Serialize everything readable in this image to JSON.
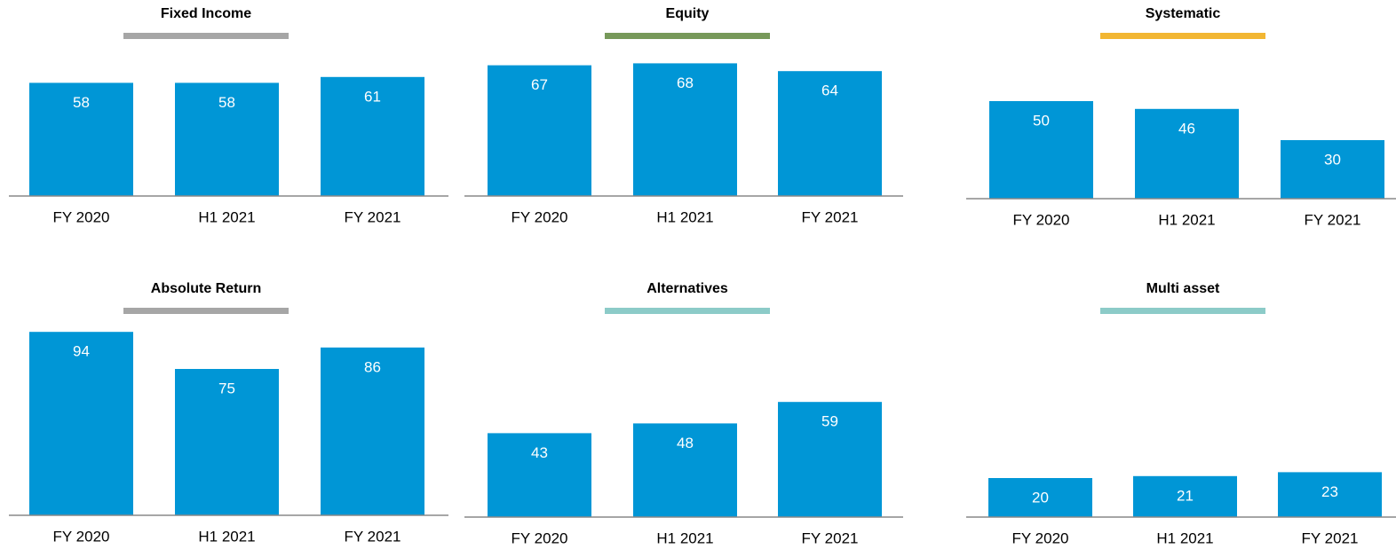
{
  "chart_data": [
    {
      "type": "bar",
      "title": "Fixed Income",
      "accent": "#a6a6a6",
      "color": "#0096d6",
      "categories": [
        "FY 2020",
        "H1 2021",
        "FY 2021"
      ],
      "values": [
        58,
        58,
        61
      ]
    },
    {
      "type": "bar",
      "title": "Equity",
      "accent": "#77995a",
      "color": "#0096d6",
      "categories": [
        "FY 2020",
        "H1 2021",
        "FY 2021"
      ],
      "values": [
        67,
        68,
        64
      ]
    },
    {
      "type": "bar",
      "title": "Systematic",
      "accent": "#f2b632",
      "color": "#0096d6",
      "categories": [
        "FY 2020",
        "H1 2021",
        "FY 2021"
      ],
      "values": [
        50,
        46,
        30
      ]
    },
    {
      "type": "bar",
      "title": "Absolute Return",
      "accent": "#a6a6a6",
      "color": "#0096d6",
      "categories": [
        "FY 2020",
        "H1 2021",
        "FY 2021"
      ],
      "values": [
        94,
        75,
        86
      ]
    },
    {
      "type": "bar",
      "title": "Alternatives",
      "accent": "#8ccbc8",
      "color": "#0096d6",
      "categories": [
        "FY 2020",
        "H1 2021",
        "FY 2021"
      ],
      "values": [
        43,
        48,
        59
      ]
    },
    {
      "type": "bar",
      "title": "Multi asset",
      "accent": "#8ccbc8",
      "color": "#0096d6",
      "categories": [
        "FY 2020",
        "H1 2021",
        "FY 2021"
      ],
      "values": [
        20,
        21,
        23
      ]
    }
  ]
}
